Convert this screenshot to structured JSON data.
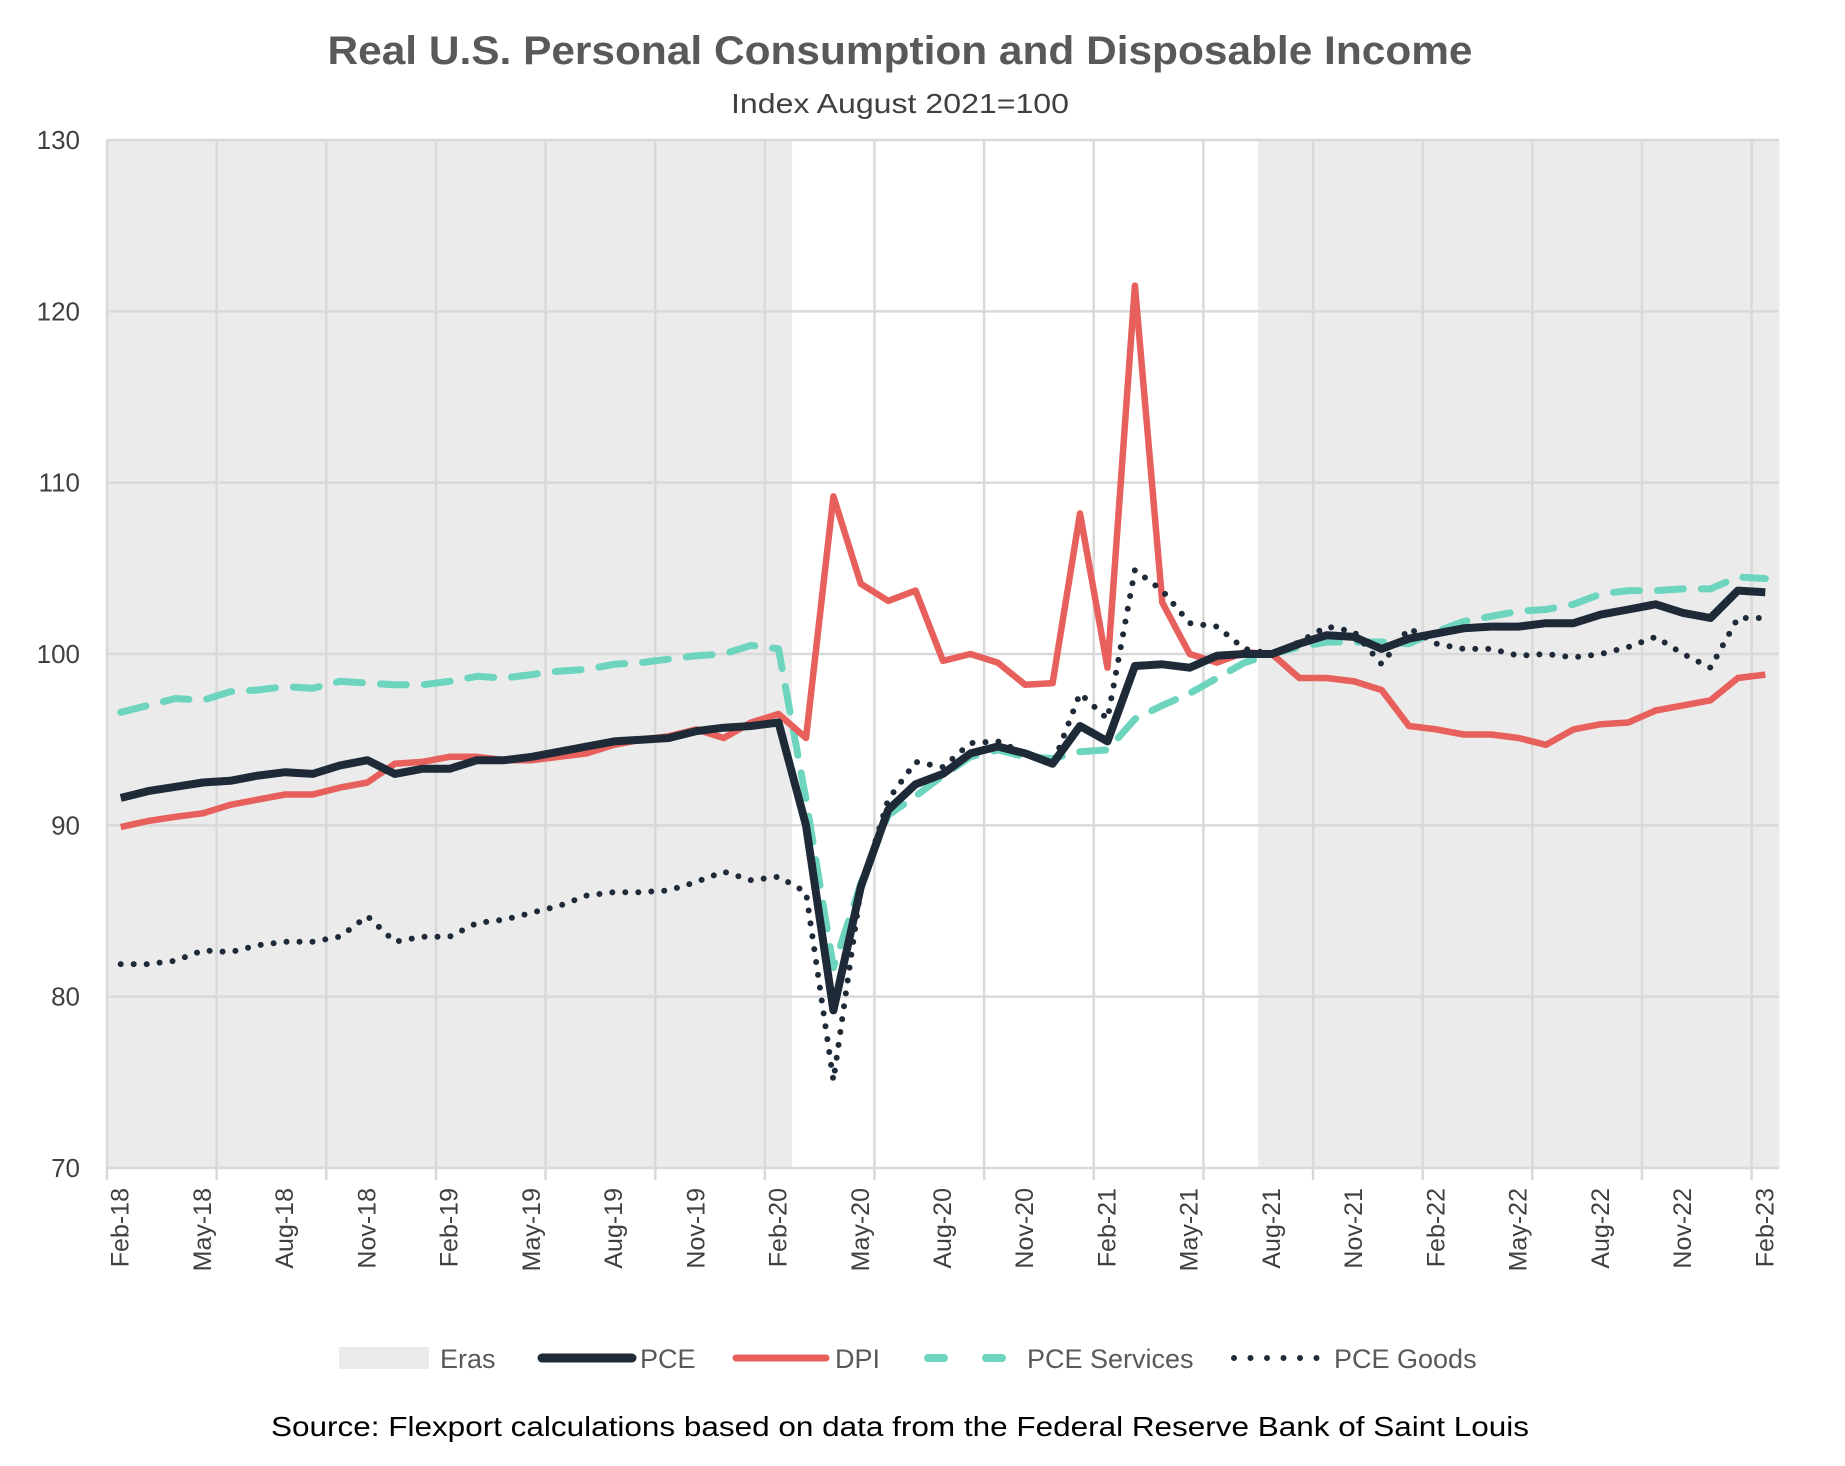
{
  "chart_data": {
    "type": "line",
    "title": "Real U.S. Personal Consumption and Disposable Income",
    "subtitle": "Index August 2021=100",
    "source": "Source: Flexport calculations based on data from the Federal Reserve Bank of Saint Louis",
    "xlabel": "",
    "ylabel": "",
    "ylim": [
      70,
      130
    ],
    "yticks": [
      70,
      80,
      90,
      100,
      110,
      120,
      130
    ],
    "grid": true,
    "legend_position": "bottom",
    "x": [
      "Feb-18",
      "Mar-18",
      "Apr-18",
      "May-18",
      "Jun-18",
      "Jul-18",
      "Aug-18",
      "Sep-18",
      "Oct-18",
      "Nov-18",
      "Dec-18",
      "Jan-19",
      "Feb-19",
      "Mar-19",
      "Apr-19",
      "May-19",
      "Jun-19",
      "Jul-19",
      "Aug-19",
      "Sep-19",
      "Oct-19",
      "Nov-19",
      "Dec-19",
      "Jan-20",
      "Feb-20",
      "Mar-20",
      "Apr-20",
      "May-20",
      "Jun-20",
      "Jul-20",
      "Aug-20",
      "Sep-20",
      "Oct-20",
      "Nov-20",
      "Dec-20",
      "Jan-21",
      "Feb-21",
      "Mar-21",
      "Apr-21",
      "May-21",
      "Jun-21",
      "Jul-21",
      "Aug-21",
      "Sep-21",
      "Oct-21",
      "Nov-21",
      "Dec-21",
      "Jan-22",
      "Feb-22",
      "Mar-22",
      "Apr-22",
      "May-22",
      "Jun-22",
      "Jul-22",
      "Aug-22",
      "Sep-22",
      "Oct-22",
      "Nov-22",
      "Dec-22",
      "Jan-23",
      "Feb-23"
    ],
    "xtick_labels": [
      "Feb-18",
      "May-18",
      "Aug-18",
      "Nov-18",
      "Feb-19",
      "May-19",
      "Aug-19",
      "Nov-19",
      "Feb-20",
      "May-20",
      "Aug-20",
      "Nov-20",
      "Feb-21",
      "May-21",
      "Aug-21",
      "Nov-21",
      "Feb-22",
      "May-22",
      "Aug-22",
      "Nov-22",
      "Feb-23"
    ],
    "eras": {
      "name": "Eras",
      "color": "#EBEBEB",
      "ranges": [
        {
          "start": "Feb-18",
          "end": "Feb-20",
          "shaded": true
        },
        {
          "start": "Mar-20",
          "end": "Jul-21",
          "shaded": false
        },
        {
          "start": "Aug-21",
          "end": "Feb-23",
          "shaded": true
        }
      ]
    },
    "series": [
      {
        "name": "PCE",
        "color": "#1F2A38",
        "style": "solid",
        "values": [
          91.6,
          92.0,
          92.25,
          92.5,
          92.6,
          92.9,
          93.1,
          93.0,
          93.5,
          93.8,
          93.0,
          93.3,
          93.3,
          93.8,
          93.8,
          94.0,
          94.3,
          94.6,
          94.9,
          95.0,
          95.1,
          95.5,
          95.7,
          95.8,
          96.0,
          90.0,
          79.2,
          86.4,
          90.9,
          92.4,
          93.0,
          94.2,
          94.6,
          94.2,
          93.6,
          95.8,
          94.9,
          99.3,
          99.4,
          99.2,
          99.9,
          100.0,
          100.0,
          100.6,
          101.1,
          101.0,
          100.3,
          100.9,
          101.2,
          101.5,
          101.6,
          101.6,
          101.8,
          101.8,
          102.3,
          102.6,
          102.9,
          102.4,
          102.1,
          103.7,
          103.6
        ]
      },
      {
        "name": "DPI",
        "color": "#E8605C",
        "style": "solid",
        "values": [
          89.9,
          90.25,
          90.5,
          90.7,
          91.2,
          91.5,
          91.8,
          91.8,
          92.2,
          92.5,
          93.6,
          93.7,
          94.0,
          94.0,
          93.8,
          93.8,
          94.0,
          94.2,
          94.7,
          95.0,
          95.2,
          95.6,
          95.1,
          96.0,
          96.5,
          95.1,
          109.2,
          104.1,
          103.1,
          103.7,
          99.6,
          100.0,
          99.5,
          98.2,
          98.3,
          108.2,
          99.2,
          121.5,
          103.0,
          100.0,
          99.5,
          100.1,
          100.0,
          98.6,
          98.6,
          98.4,
          97.9,
          95.8,
          95.6,
          95.3,
          95.3,
          95.1,
          94.7,
          95.6,
          95.9,
          96.0,
          96.7,
          97.0,
          97.3,
          98.6,
          98.8
        ]
      },
      {
        "name": "PCE Services",
        "color": "#6DD5BE",
        "style": "dashed",
        "values": [
          96.6,
          97.0,
          97.4,
          97.3,
          97.8,
          97.9,
          98.1,
          98.0,
          98.4,
          98.3,
          98.2,
          98.2,
          98.4,
          98.7,
          98.6,
          98.8,
          99.0,
          99.1,
          99.4,
          99.5,
          99.7,
          99.9,
          100.0,
          100.5,
          100.3,
          91.5,
          81.7,
          86.6,
          90.6,
          91.7,
          92.9,
          94.0,
          94.4,
          94.0,
          93.9,
          94.3,
          94.4,
          96.2,
          97.0,
          97.7,
          98.6,
          99.5,
          100.0,
          100.4,
          100.7,
          100.7,
          100.7,
          100.6,
          101.3,
          101.9,
          102.2,
          102.5,
          102.6,
          102.9,
          103.5,
          103.7,
          103.7,
          103.8,
          103.8,
          104.5,
          104.4
        ]
      },
      {
        "name": "PCE Goods",
        "color": "#1F2A38",
        "style": "dotted",
        "values": [
          81.9,
          81.9,
          82.1,
          82.7,
          82.6,
          83.0,
          83.2,
          83.2,
          83.5,
          84.7,
          83.2,
          83.5,
          83.5,
          84.3,
          84.5,
          84.9,
          85.3,
          85.9,
          86.1,
          86.1,
          86.2,
          86.7,
          87.3,
          86.8,
          87.0,
          86.1,
          75.1,
          86.3,
          91.5,
          93.7,
          93.4,
          94.8,
          94.9,
          94.2,
          93.5,
          97.7,
          96.2,
          104.9,
          103.7,
          101.8,
          101.6,
          100.3,
          100.0,
          100.7,
          101.6,
          101.3,
          99.4,
          101.5,
          100.6,
          100.3,
          100.3,
          99.9,
          100.0,
          99.8,
          100.0,
          100.4,
          101.0,
          100.0,
          99.2,
          102.1,
          102.1
        ]
      }
    ]
  }
}
